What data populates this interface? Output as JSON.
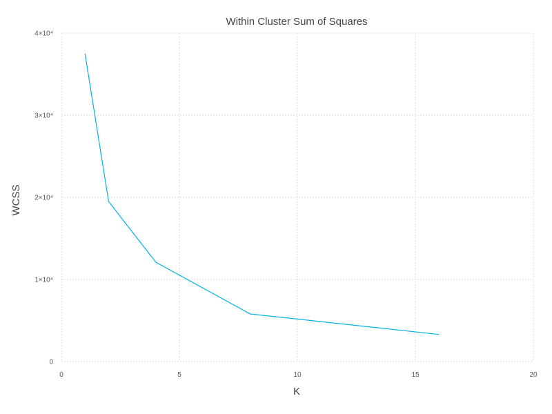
{
  "chart_data": {
    "type": "line",
    "title": "Within Cluster Sum of Squares",
    "xlabel": "K",
    "ylabel": "WCSS",
    "xlim": [
      0,
      20
    ],
    "ylim": [
      0,
      40000
    ],
    "x_ticks": [
      0,
      5,
      10,
      15,
      20
    ],
    "x_tick_labels": [
      "0",
      "5",
      "10",
      "15",
      "20"
    ],
    "y_ticks": [
      0,
      10000,
      20000,
      30000,
      40000
    ],
    "y_tick_labels": [
      "0",
      "1×10⁴",
      "2×10⁴",
      "3×10⁴",
      "4×10⁴"
    ],
    "grid": true,
    "legend": "none",
    "series": [
      {
        "color": "#00b2e3",
        "x": [
          1,
          2,
          4,
          8,
          16
        ],
        "y": [
          37500,
          19500,
          12100,
          5800,
          3300
        ]
      }
    ]
  }
}
